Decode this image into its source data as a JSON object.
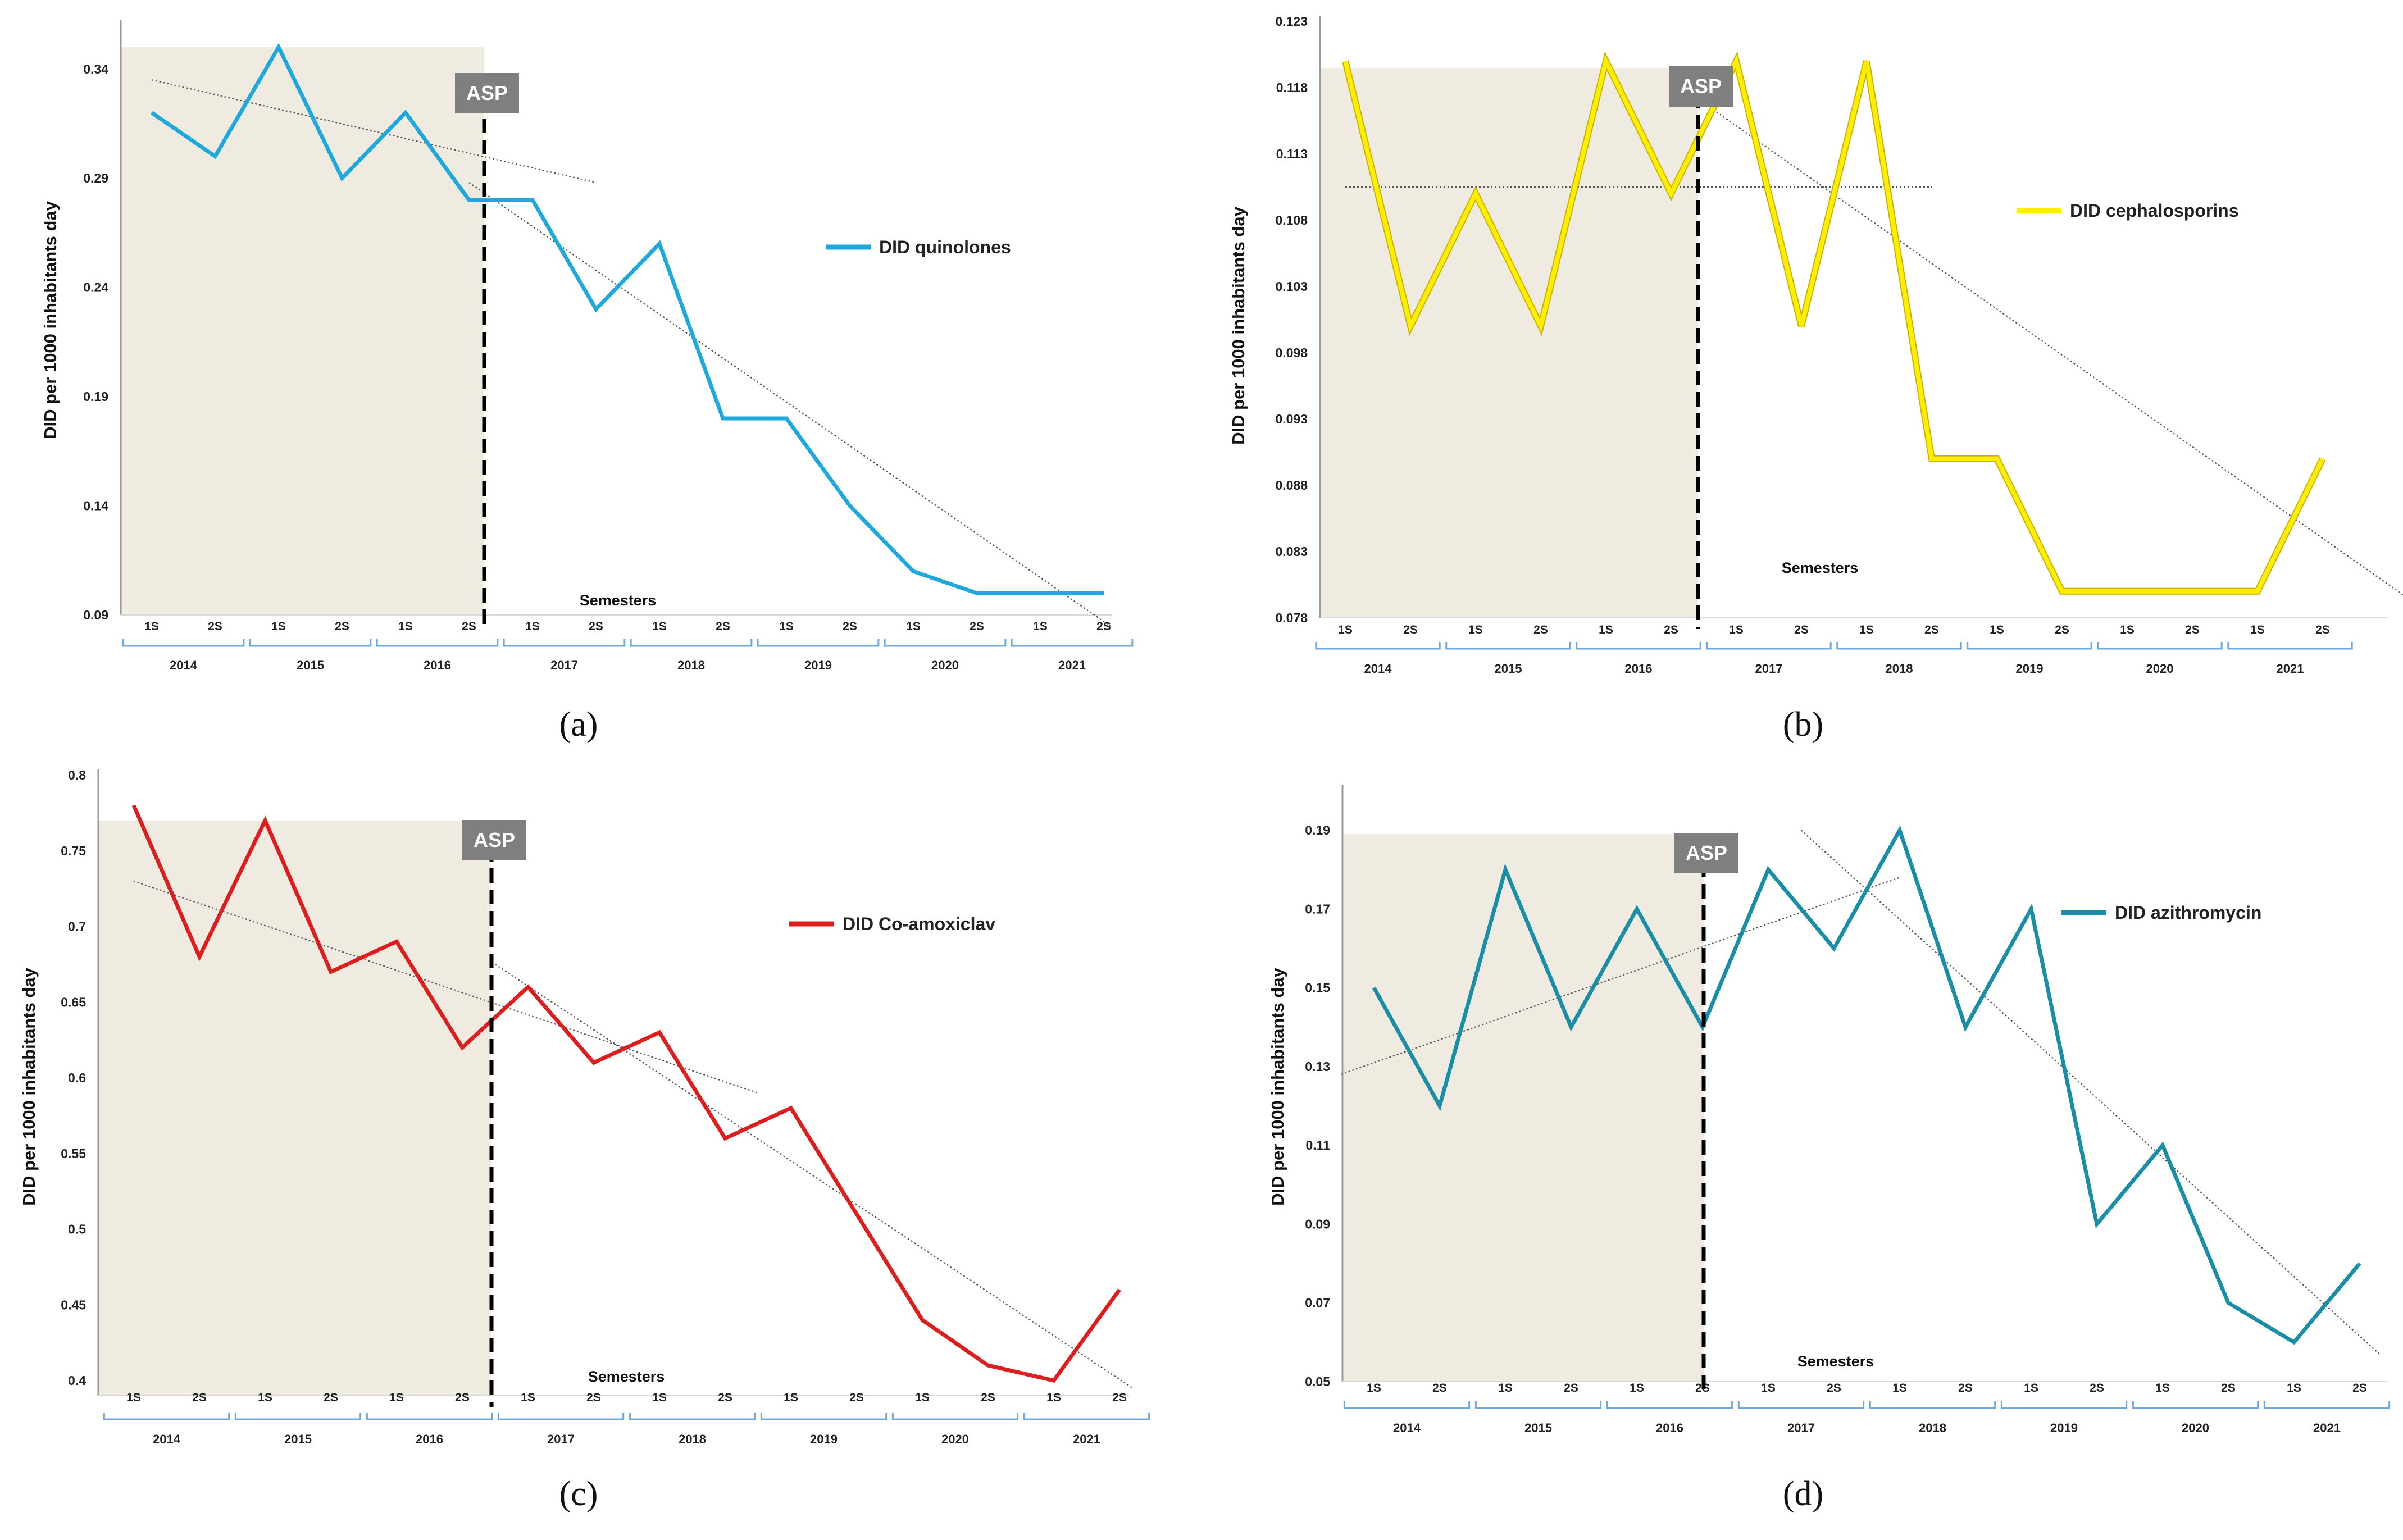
{
  "figure": {
    "x_axis_title": "Semesters",
    "y_axis_title": "DID per 1000 inhabitants  day",
    "asp_label": "ASP",
    "semester_labels": [
      "1S",
      "2S",
      "1S",
      "2S",
      "1S",
      "2S",
      "1S",
      "2S",
      "1S",
      "2S",
      "1S",
      "2S",
      "1S",
      "2S",
      "1S",
      "2S"
    ],
    "years": [
      "2014",
      "2015",
      "2016",
      "2017",
      "2018",
      "2019",
      "2020",
      "2021"
    ]
  },
  "chart_data": [
    {
      "id": "a",
      "panel_label": "(a)",
      "type": "line",
      "series": [
        {
          "name": "DID quinolones",
          "values": [
            0.32,
            0.3,
            0.35,
            0.29,
            0.32,
            0.28,
            0.28,
            0.23,
            0.26,
            0.18,
            0.18,
            0.14,
            0.11,
            0.1,
            0.1,
            0.1
          ]
        }
      ],
      "ylim": [
        0.09,
        0.36
      ],
      "yticks": [
        0.09,
        0.14,
        0.19,
        0.24,
        0.29,
        0.34
      ],
      "ytick_labels": [
        "0.09",
        "0.14",
        "0.19",
        "0.24",
        "0.29",
        "0.34"
      ],
      "color": "#1fa8dc",
      "trend_pre": {
        "from_index": 0,
        "to_index": 7,
        "start": 0.335,
        "end": 0.288
      },
      "trend_post": {
        "from_index": 5,
        "to_index": 15.1,
        "start": 0.288,
        "end": 0.085
      },
      "shade_top": 0.35,
      "legend_position": "right"
    },
    {
      "id": "b",
      "panel_label": "(b)",
      "type": "line",
      "series": [
        {
          "name": "DID cephalosporins",
          "values": [
            0.12,
            0.1,
            0.11,
            0.1,
            0.12,
            0.11,
            0.12,
            0.1,
            0.12,
            0.09,
            0.09,
            0.08,
            0.08,
            0.08,
            0.08,
            0.09
          ]
        }
      ],
      "ylim": [
        0.078,
        0.123
      ],
      "yticks": [
        0.078,
        0.083,
        0.088,
        0.093,
        0.098,
        0.103,
        0.108,
        0.113,
        0.118,
        0.123
      ],
      "ytick_labels": [
        "0.078",
        "0.083",
        "0.088",
        "0.093",
        "0.098",
        "0.103",
        "0.108",
        "0.113",
        "0.118",
        "0.123"
      ],
      "color": "#ffee00",
      "trend_pre": {
        "from_index": 0,
        "to_index": 9,
        "start": 0.1105,
        "end": 0.1105
      },
      "trend_post": {
        "from_index": 5.6,
        "to_index": 16.3,
        "start": 0.1165,
        "end": 0.0795
      },
      "shade_top": 0.1195,
      "legend_position": "right"
    },
    {
      "id": "c",
      "panel_label": "(c)",
      "type": "line",
      "series": [
        {
          "name": "DID Co-amoxiclav",
          "values": [
            0.78,
            0.68,
            0.77,
            0.67,
            0.69,
            0.62,
            0.66,
            0.61,
            0.63,
            0.56,
            0.58,
            0.51,
            0.44,
            0.41,
            0.4,
            0.46
          ]
        }
      ],
      "ylim": [
        0.39,
        0.8
      ],
      "yticks": [
        0.4,
        0.45,
        0.5,
        0.55,
        0.6,
        0.65,
        0.7,
        0.75,
        0.8
      ],
      "ytick_labels": [
        "0.4",
        "0.45",
        "0.5",
        "0.55",
        "0.6",
        "0.65",
        "0.7",
        "0.75",
        "0.8"
      ],
      "color": "#dc1e1e",
      "trend_pre": {
        "from_index": 0,
        "to_index": 9.5,
        "start": 0.73,
        "end": 0.59
      },
      "trend_post": {
        "from_index": 5.5,
        "to_index": 15.2,
        "start": 0.675,
        "end": 0.395
      },
      "shade_top": 0.77,
      "legend_position": "right"
    },
    {
      "id": "d",
      "panel_label": "(d)",
      "type": "line",
      "series": [
        {
          "name": "DID azithromycin",
          "values": [
            0.15,
            0.12,
            0.18,
            0.14,
            0.17,
            0.14,
            0.18,
            0.16,
            0.19,
            0.14,
            0.17,
            0.09,
            0.11,
            0.07,
            0.06,
            0.08
          ]
        }
      ],
      "ylim": [
        0.05,
        0.2
      ],
      "yticks": [
        0.05,
        0.07,
        0.09,
        0.11,
        0.13,
        0.15,
        0.17,
        0.19
      ],
      "ytick_labels": [
        "0.05",
        "0.07",
        "0.09",
        "0.11",
        "0.13",
        "0.15",
        "0.17",
        "0.19"
      ],
      "color": "#1a8ea6",
      "trend_pre": {
        "from_index": -0.5,
        "to_index": 8,
        "start": 0.128,
        "end": 0.178
      },
      "trend_post": {
        "from_index": 6.5,
        "to_index": 15.3,
        "start": 0.19,
        "end": 0.057
      },
      "shade_top": 0.189,
      "legend_position": "right"
    }
  ]
}
